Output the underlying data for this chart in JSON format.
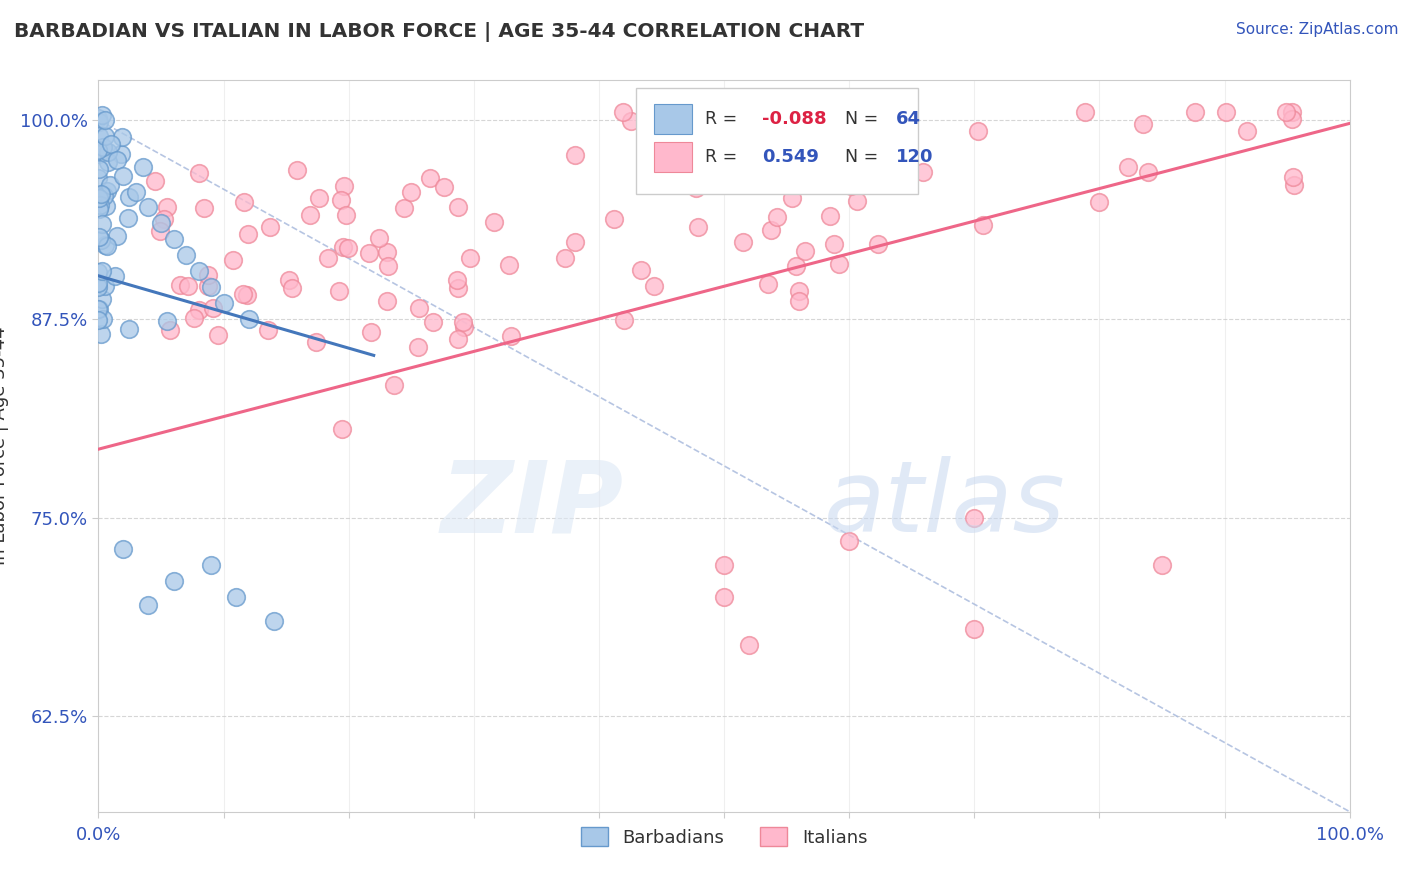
{
  "title": "BARBADIAN VS ITALIAN IN LABOR FORCE | AGE 35-44 CORRELATION CHART",
  "source": "Source: ZipAtlas.com",
  "ylabel": "In Labor Force | Age 35-44",
  "xlim": [
    0.0,
    1.0
  ],
  "ylim": [
    0.565,
    1.025
  ],
  "yticks": [
    0.625,
    0.75,
    0.875,
    1.0
  ],
  "ytick_labels": [
    "62.5%",
    "75.0%",
    "87.5%",
    "100.0%"
  ],
  "xtick_labels_left": "0.0%",
  "xtick_labels_right": "100.0%",
  "legend_r_blue": "-0.088",
  "legend_n_blue": "64",
  "legend_r_pink": "0.549",
  "legend_n_pink": "120",
  "blue_color": "#a8c8e8",
  "blue_edge": "#6699cc",
  "pink_color": "#ffb8cc",
  "pink_edge": "#ee8899",
  "trend_blue": "#4477bb",
  "trend_pink": "#ee6688",
  "ref_line_color": "#aabbdd",
  "label_color": "#3355bb",
  "text_color": "#333333",
  "background": "#ffffff",
  "watermark_zip_color": "#ccddee",
  "watermark_atlas_color": "#bbccee"
}
